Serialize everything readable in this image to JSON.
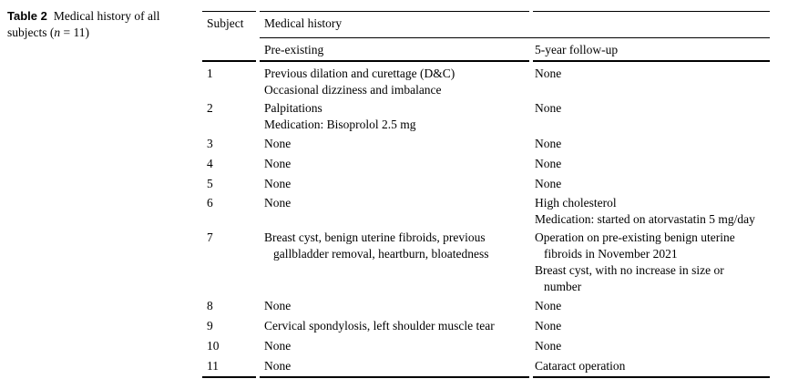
{
  "caption": {
    "label": "Table 2",
    "text_before_n": "Medical history of all subjects (",
    "n": "n",
    "text_after_n": " = 11)"
  },
  "table": {
    "columns": {
      "subject": "Subject",
      "group": "Medical history",
      "pre": "Pre-existing",
      "followup": "5-year follow-up"
    },
    "rows": [
      {
        "subject": "1",
        "pre_existing": [
          [
            "Previous dilation and curettage (D&C)"
          ],
          [
            "Occasional dizziness and imbalance"
          ]
        ],
        "follow_up": [
          [
            "None"
          ]
        ]
      },
      {
        "subject": "2",
        "pre_existing": [
          [
            "Palpitations"
          ],
          [
            "Medication: Bisoprolol 2.5 mg"
          ]
        ],
        "follow_up": [
          [
            "None"
          ]
        ]
      },
      {
        "subject": "3",
        "pre_existing": [
          [
            "None"
          ]
        ],
        "follow_up": [
          [
            "None"
          ]
        ]
      },
      {
        "subject": "4",
        "pre_existing": [
          [
            "None"
          ]
        ],
        "follow_up": [
          [
            "None"
          ]
        ]
      },
      {
        "subject": "5",
        "pre_existing": [
          [
            "None"
          ]
        ],
        "follow_up": [
          [
            "None"
          ]
        ]
      },
      {
        "subject": "6",
        "pre_existing": [
          [
            "None"
          ]
        ],
        "follow_up": [
          [
            "High cholesterol"
          ],
          [
            "Medication: started on atorvastatin 5 mg/day"
          ]
        ]
      },
      {
        "subject": "7",
        "pre_existing": [
          [
            "Breast cyst, benign uterine fibroids, previous",
            "gallbladder removal, heartburn, bloatedness"
          ]
        ],
        "follow_up": [
          [
            "Operation on pre-existing benign uterine",
            "fibroids in November 2021"
          ],
          [
            "Breast cyst, with no increase in size or",
            "number"
          ]
        ]
      },
      {
        "subject": "8",
        "pre_existing": [
          [
            "None"
          ]
        ],
        "follow_up": [
          [
            "None"
          ]
        ]
      },
      {
        "subject": "9",
        "pre_existing": [
          [
            "Cervical spondylosis, left shoulder muscle tear"
          ]
        ],
        "follow_up": [
          [
            "None"
          ]
        ]
      },
      {
        "subject": "10",
        "pre_existing": [
          [
            "None"
          ]
        ],
        "follow_up": [
          [
            "None"
          ]
        ]
      },
      {
        "subject": "11",
        "pre_existing": [
          [
            "None"
          ]
        ],
        "follow_up": [
          [
            "Cataract operation"
          ]
        ]
      }
    ]
  },
  "colors": {
    "text": "#000000",
    "rule": "#000000",
    "background": "#ffffff"
  }
}
